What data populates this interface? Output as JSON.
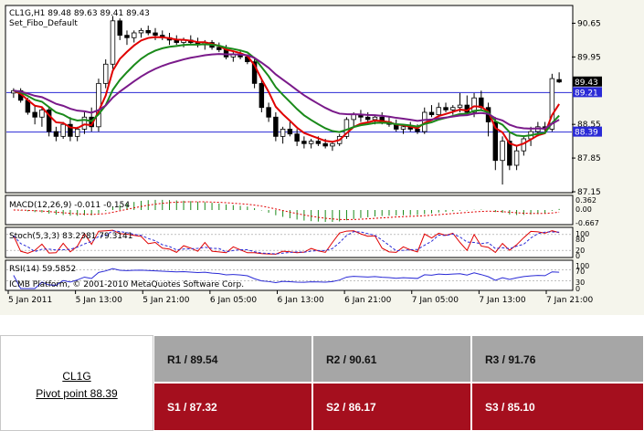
{
  "chart_header": {
    "symbol_line": "CL1G,H1  89.48 89.63 89.41 89.43",
    "indicator_line": "Set_Fibo_Default"
  },
  "chart_data": {
    "type": "candlestick",
    "symbol": "CL1G",
    "timeframe": "H1",
    "ohlc": {
      "open": 89.48,
      "high": 89.63,
      "low": 89.41,
      "close": 89.43
    },
    "ylim": [
      87.15,
      91.0
    ],
    "y_ticks": [
      "90.65",
      "89.95",
      "88.55",
      "87.85",
      "87.15"
    ],
    "x_ticks": [
      "5 Jan 2011",
      "5 Jan 13:00",
      "5 Jan 21:00",
      "6 Jan 05:00",
      "6 Jan 13:00",
      "6 Jan 21:00",
      "7 Jan 05:00",
      "7 Jan 13:00",
      "7 Jan 21:00"
    ],
    "price_tags": [
      {
        "label": "89.43",
        "value": 89.43,
        "color": "#000000"
      },
      {
        "label": "89.21",
        "value": 89.21,
        "color": "#2a2ad6"
      },
      {
        "label": "88.39",
        "value": 88.39,
        "color": "#2a2ad6"
      }
    ],
    "hlines": [
      {
        "value": 89.21,
        "color": "#2a2ad6"
      },
      {
        "value": 88.39,
        "color": "#2a2ad6"
      }
    ],
    "candles": [
      [
        89.2,
        89.3,
        89.1,
        89.25
      ],
      [
        89.25,
        89.3,
        89.0,
        89.05
      ],
      [
        89.05,
        89.1,
        88.75,
        88.8
      ],
      [
        88.8,
        88.95,
        88.55,
        88.7
      ],
      [
        88.7,
        88.9,
        88.5,
        88.85
      ],
      [
        88.85,
        88.9,
        88.3,
        88.4
      ],
      [
        88.4,
        88.5,
        88.2,
        88.3
      ],
      [
        88.3,
        88.6,
        88.25,
        88.55
      ],
      [
        88.55,
        88.7,
        88.2,
        88.3
      ],
      [
        88.3,
        88.5,
        88.2,
        88.45
      ],
      [
        88.45,
        88.8,
        88.35,
        88.7
      ],
      [
        88.7,
        88.9,
        88.4,
        88.5
      ],
      [
        88.5,
        89.5,
        88.4,
        89.4
      ],
      [
        89.4,
        89.9,
        89.3,
        89.8
      ],
      [
        89.8,
        90.8,
        89.7,
        90.7
      ],
      [
        90.7,
        90.75,
        90.3,
        90.4
      ],
      [
        90.4,
        90.5,
        90.2,
        90.35
      ],
      [
        90.35,
        90.5,
        90.25,
        90.45
      ],
      [
        90.45,
        90.55,
        90.35,
        90.5
      ],
      [
        90.5,
        90.6,
        90.4,
        90.45
      ],
      [
        90.45,
        90.55,
        90.3,
        90.4
      ],
      [
        90.4,
        90.5,
        90.3,
        90.35
      ],
      [
        90.35,
        90.45,
        90.2,
        90.3
      ],
      [
        90.3,
        90.4,
        90.2,
        90.25
      ],
      [
        90.25,
        90.35,
        90.15,
        90.3
      ],
      [
        90.3,
        90.4,
        90.2,
        90.25
      ],
      [
        90.25,
        90.35,
        90.15,
        90.2
      ],
      [
        90.2,
        90.3,
        90.1,
        90.25
      ],
      [
        90.25,
        90.3,
        90.1,
        90.15
      ],
      [
        90.15,
        90.25,
        90.05,
        90.1
      ],
      [
        90.1,
        90.2,
        89.9,
        89.95
      ],
      [
        89.95,
        90.05,
        89.85,
        90.0
      ],
      [
        90.0,
        90.1,
        89.9,
        89.95
      ],
      [
        89.95,
        90.0,
        89.8,
        89.85
      ],
      [
        89.85,
        89.95,
        89.3,
        89.4
      ],
      [
        89.4,
        89.5,
        88.8,
        88.9
      ],
      [
        88.9,
        89.0,
        88.6,
        88.7
      ],
      [
        88.7,
        88.8,
        88.2,
        88.3
      ],
      [
        88.3,
        88.5,
        88.15,
        88.45
      ],
      [
        88.45,
        88.6,
        88.3,
        88.35
      ],
      [
        88.35,
        88.45,
        88.1,
        88.2
      ],
      [
        88.2,
        88.3,
        88.05,
        88.15
      ],
      [
        88.15,
        88.25,
        88.05,
        88.2
      ],
      [
        88.2,
        88.3,
        88.1,
        88.15
      ],
      [
        88.15,
        88.25,
        88.05,
        88.1
      ],
      [
        88.1,
        88.2,
        88.0,
        88.15
      ],
      [
        88.15,
        88.35,
        88.1,
        88.3
      ],
      [
        88.3,
        88.7,
        88.25,
        88.65
      ],
      [
        88.65,
        88.8,
        88.5,
        88.75
      ],
      [
        88.75,
        88.85,
        88.6,
        88.7
      ],
      [
        88.7,
        88.8,
        88.6,
        88.65
      ],
      [
        88.65,
        88.75,
        88.55,
        88.7
      ],
      [
        88.7,
        88.8,
        88.55,
        88.6
      ],
      [
        88.6,
        88.7,
        88.5,
        88.55
      ],
      [
        88.55,
        88.65,
        88.4,
        88.45
      ],
      [
        88.45,
        88.55,
        88.35,
        88.5
      ],
      [
        88.5,
        88.6,
        88.4,
        88.45
      ],
      [
        88.45,
        88.55,
        88.35,
        88.4
      ],
      [
        88.4,
        88.9,
        88.35,
        88.8
      ],
      [
        88.8,
        88.95,
        88.7,
        88.75
      ],
      [
        88.75,
        89.0,
        88.7,
        88.9
      ],
      [
        88.9,
        89.0,
        88.8,
        88.85
      ],
      [
        88.85,
        88.95,
        88.75,
        88.9
      ],
      [
        88.9,
        89.2,
        88.8,
        88.95
      ],
      [
        88.95,
        89.15,
        88.75,
        88.8
      ],
      [
        88.8,
        89.2,
        88.7,
        89.1
      ],
      [
        89.1,
        89.25,
        88.85,
        88.9
      ],
      [
        88.9,
        89.0,
        88.3,
        88.6
      ],
      [
        88.6,
        88.7,
        87.6,
        87.8
      ],
      [
        87.8,
        88.3,
        87.3,
        88.2
      ],
      [
        88.2,
        88.4,
        87.6,
        87.7
      ],
      [
        87.7,
        88.1,
        87.6,
        88.0
      ],
      [
        88.0,
        88.3,
        87.9,
        88.25
      ],
      [
        88.25,
        88.5,
        88.1,
        88.4
      ],
      [
        88.4,
        88.6,
        88.3,
        88.5
      ],
      [
        88.5,
        88.6,
        88.4,
        88.45
      ],
      [
        88.45,
        89.6,
        88.4,
        89.5
      ],
      [
        89.48,
        89.63,
        89.41,
        89.43
      ]
    ],
    "macd": {
      "label": "MACD(12,26,9) -0.011 -0.154",
      "y_ticks": [
        "0.362",
        "0.00",
        "-0.667"
      ]
    },
    "stoch": {
      "label": "Stoch(5,3,3) 83.2381 79.3141",
      "y_ticks": [
        "100",
        "80",
        "20",
        "0"
      ]
    },
    "rsi": {
      "label": "RSI(14) 59.5852",
      "y_ticks": [
        "100",
        "70",
        "30",
        "0"
      ]
    },
    "copyright": "ICMB Platform, © 2001-2010 MetaQuotes Software Corp."
  },
  "pivot_table": {
    "ticker": "CL1G",
    "pivot_label": "Pivot point 88.39",
    "resistances": [
      "R1 / 89.54",
      "R2 / 90.61",
      "R3 / 91.76"
    ],
    "supports": [
      "S1 / 87.32",
      "S2 / 86.17",
      "S3 / 85.10"
    ]
  },
  "colors": {
    "bull_candle": "#ffffff",
    "bear_candle": "#000000",
    "ema_fast": "#e00000",
    "ema_mid": "#1a8a1a",
    "ema_slow": "#7a1a8a",
    "level_line": "#2a2ad6",
    "resistance_bg": "#a6a6a6",
    "support_bg": "#a50f1e"
  }
}
